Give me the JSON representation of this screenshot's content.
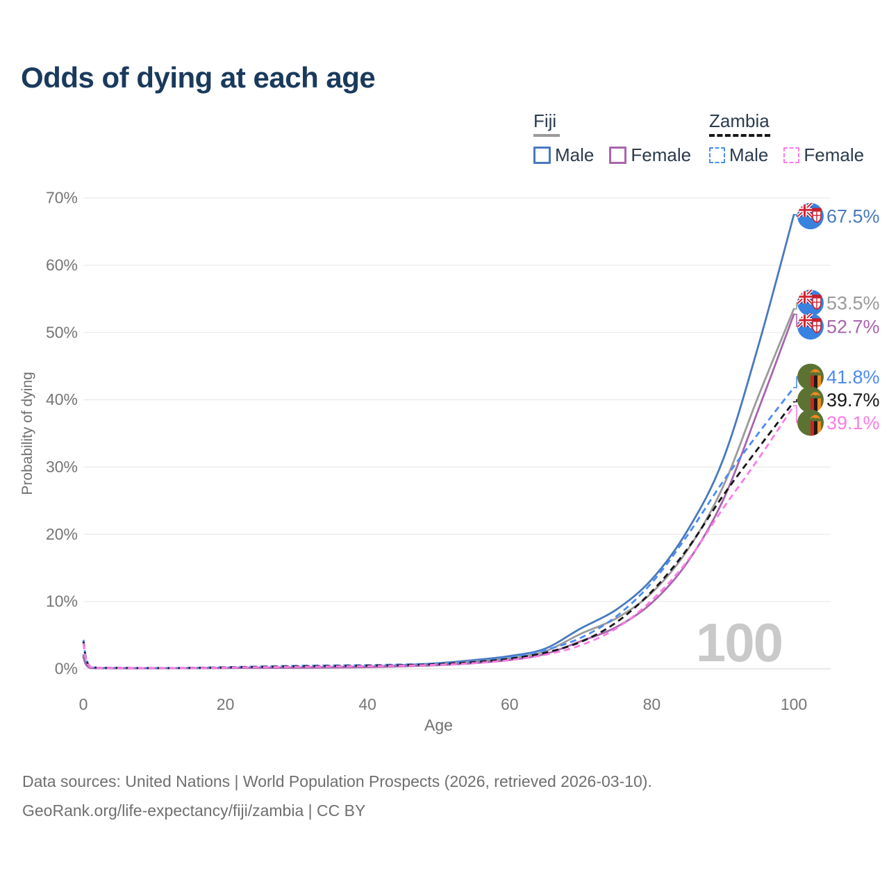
{
  "title": "Odds of dying at each age",
  "watermark": "100",
  "legend": {
    "groups": [
      {
        "label": "Fiji",
        "line_style": "solid",
        "underline_color": "#9a9a9a",
        "items": [
          {
            "label": "Male",
            "color": "#4879bd"
          },
          {
            "label": "Female",
            "color": "#a765ad"
          }
        ]
      },
      {
        "label": "Zambia",
        "line_style": "dashed",
        "underline_color": "#161616",
        "items": [
          {
            "label": "Male",
            "color": "#4b8bf4"
          },
          {
            "label": "Female",
            "color": "#fb7ce4"
          }
        ]
      }
    ]
  },
  "footer": {
    "line1": "Data sources: United Nations | World Population Prospects (2026, retrieved 2026-03-10).",
    "line2": "GeoRank.org/life-expectancy/fiji/zambia | CC BY"
  },
  "chart_data": {
    "type": "line",
    "title": "Odds of dying at each age",
    "xlabel": "Age",
    "ylabel": "Probability of dying",
    "xlim": [
      0,
      100
    ],
    "ylim": [
      0,
      70
    ],
    "grid": "horizontal-only",
    "legend_position": "top-right",
    "x_ticks": [
      "0",
      "20",
      "40",
      "60",
      "80",
      "100"
    ],
    "x_tick_values": [
      0,
      20,
      40,
      60,
      80,
      100
    ],
    "y_ticks": [
      "0%",
      "10%",
      "20%",
      "30%",
      "40%",
      "50%",
      "60%",
      "70%"
    ],
    "y_tick_values": [
      0,
      10,
      20,
      30,
      40,
      50,
      60,
      70
    ],
    "x": [
      0,
      1,
      5,
      10,
      15,
      20,
      25,
      30,
      35,
      40,
      45,
      50,
      55,
      60,
      65,
      70,
      75,
      80,
      85,
      90,
      95,
      100
    ],
    "series": [
      {
        "name": "Fiji Male",
        "country": "Fiji",
        "sex": "Male",
        "color": "#4879bd",
        "dash": "solid",
        "end_label": "67.5%",
        "end_value": 67.5,
        "label_pos": 67.3,
        "values": [
          2.0,
          0.15,
          0.1,
          0.1,
          0.12,
          0.15,
          0.18,
          0.2,
          0.25,
          0.35,
          0.55,
          0.85,
          1.3,
          1.9,
          3.0,
          6.0,
          8.8,
          13.3,
          20.5,
          31.0,
          48.0,
          67.5
        ]
      },
      {
        "name": "Fiji Both sexes",
        "country": "Fiji",
        "sex": "Both",
        "color": "#9a9a9a",
        "dash": "solid",
        "end_label": "53.5%",
        "end_value": 53.5,
        "label_pos": 54.4,
        "values": [
          1.85,
          0.14,
          0.09,
          0.09,
          0.11,
          0.13,
          0.16,
          0.18,
          0.22,
          0.3,
          0.46,
          0.7,
          1.1,
          1.6,
          2.6,
          5.2,
          7.5,
          11.3,
          17.6,
          27.0,
          40.5,
          53.5
        ]
      },
      {
        "name": "Fiji Female",
        "country": "Fiji",
        "sex": "Female",
        "color": "#a765ad",
        "dash": "solid",
        "end_label": "52.7%",
        "end_value": 52.7,
        "label_pos": 50.9,
        "values": [
          1.7,
          0.12,
          0.08,
          0.08,
          0.1,
          0.12,
          0.14,
          0.16,
          0.2,
          0.25,
          0.38,
          0.55,
          0.85,
          1.3,
          2.2,
          4.1,
          6.2,
          9.8,
          15.8,
          25.0,
          38.5,
          52.7
        ]
      },
      {
        "name": "Zambia Male",
        "country": "Zambia",
        "sex": "Male",
        "color": "#4b8bf4",
        "dash": "dashed",
        "end_label": "41.8%",
        "end_value": 41.8,
        "label_pos": 43.4,
        "values": [
          4.3,
          0.3,
          0.15,
          0.12,
          0.15,
          0.25,
          0.35,
          0.45,
          0.5,
          0.55,
          0.65,
          0.8,
          1.1,
          1.7,
          2.8,
          4.6,
          7.8,
          12.8,
          19.8,
          27.8,
          35.0,
          41.8
        ]
      },
      {
        "name": "Zambia Both sexes",
        "country": "Zambia",
        "sex": "Both",
        "color": "#161616",
        "dash": "dashed",
        "end_label": "39.7%",
        "end_value": 39.7,
        "label_pos": 40.0,
        "values": [
          4.05,
          0.29,
          0.14,
          0.11,
          0.13,
          0.21,
          0.3,
          0.37,
          0.42,
          0.47,
          0.56,
          0.7,
          1.0,
          1.5,
          2.4,
          4.0,
          6.9,
          11.5,
          17.8,
          25.7,
          32.8,
          39.7
        ]
      },
      {
        "name": "Zambia Female",
        "country": "Zambia",
        "sex": "Female",
        "color": "#fb7ce4",
        "dash": "dashed",
        "end_label": "39.1%",
        "end_value": 39.1,
        "label_pos": 36.6,
        "values": [
          3.8,
          0.28,
          0.13,
          0.1,
          0.12,
          0.18,
          0.25,
          0.3,
          0.35,
          0.4,
          0.48,
          0.6,
          0.85,
          1.3,
          2.1,
          3.5,
          6.0,
          10.2,
          16.0,
          23.8,
          31.2,
          39.1
        ]
      }
    ]
  }
}
